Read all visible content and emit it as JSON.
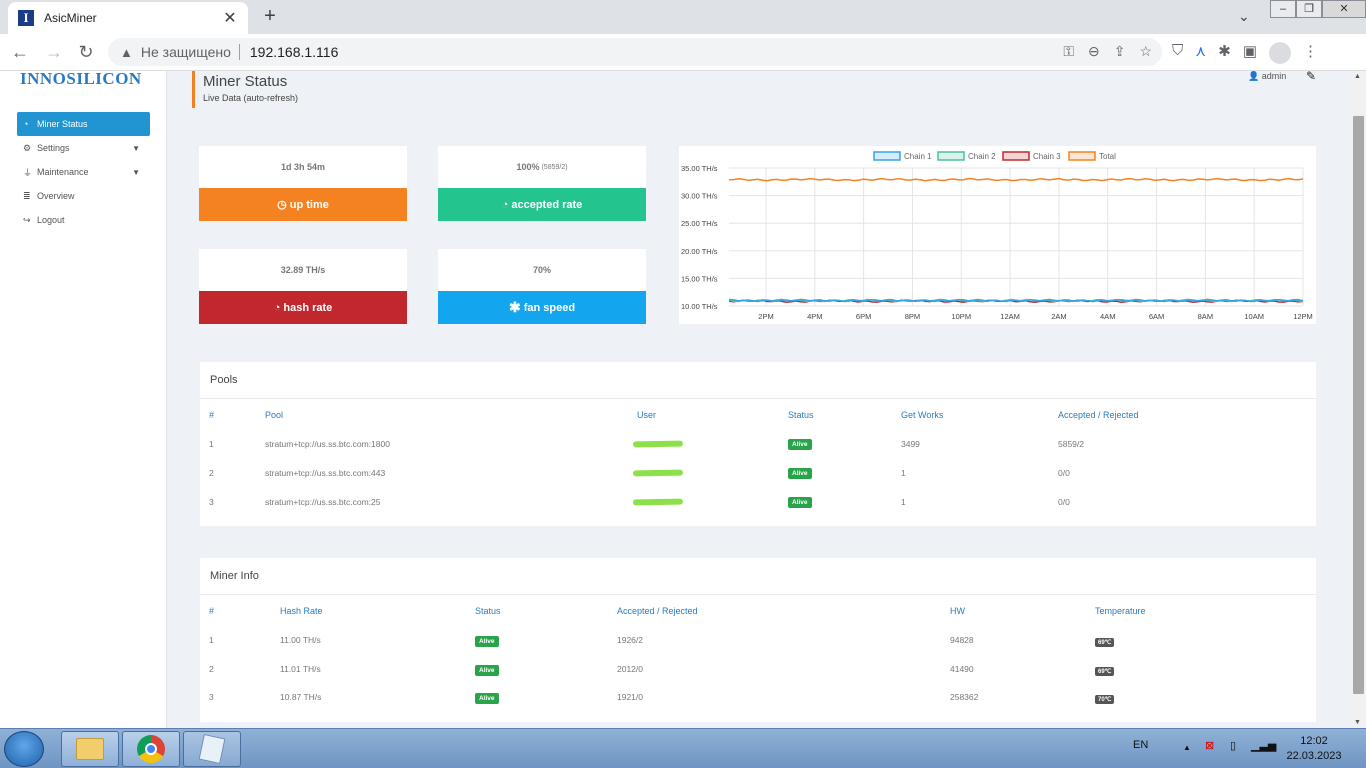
{
  "browser": {
    "tab_title": "AsicMiner",
    "tab_favicon_letter": "I",
    "tab_close": "✕",
    "new_tab": "+",
    "not_secure": "Не защищено",
    "url": "192.168.1.116"
  },
  "sidebar": {
    "logo": "INNOSILICON",
    "items": [
      {
        "label": "Miner Status",
        "icon": "dashboard-icon",
        "active": true
      },
      {
        "label": "Settings",
        "icon": "gears-icon",
        "has_caret": true
      },
      {
        "label": "Maintenance",
        "icon": "plug-icon",
        "has_caret": true
      },
      {
        "label": "Overview",
        "icon": "database-icon"
      },
      {
        "label": "Logout",
        "icon": "logout-icon"
      }
    ]
  },
  "header": {
    "title": "Miner Status",
    "subtitle": "Live Data (auto-refresh)",
    "user": "admin"
  },
  "stats": {
    "uptime": {
      "value": "1d 3h 54m",
      "label": "up time",
      "color": "#f58220"
    },
    "accepted": {
      "value": "100%",
      "value_detail": "(5859/2)",
      "label": "accepted rate",
      "color": "#23c48e"
    },
    "hashrate": {
      "value": "32.89 TH/s",
      "label": "hash rate",
      "color": "#c0282d"
    },
    "fan": {
      "value": "70%",
      "label": "fan speed",
      "color": "#13a5ee"
    }
  },
  "chart_data": {
    "type": "line",
    "legend": [
      "Chain 1",
      "Chain 2",
      "Chain 3",
      "Total"
    ],
    "series_colors": [
      "#36a2eb",
      "#4bc0a0",
      "#c0282d",
      "#f58220"
    ],
    "y_ticks": [
      "35.00 TH/s",
      "30.00 TH/s",
      "25.00 TH/s",
      "20.00 TH/s",
      "15.00 TH/s",
      "10.00 TH/s"
    ],
    "ylim": [
      10,
      35
    ],
    "x_ticks": [
      "2PM",
      "4PM",
      "6PM",
      "8PM",
      "10PM",
      "12AM",
      "2AM",
      "4AM",
      "6AM",
      "8AM",
      "10AM",
      "12PM"
    ],
    "series": [
      {
        "name": "Chain 1",
        "approx_value": 11.0
      },
      {
        "name": "Chain 2",
        "approx_value": 11.0
      },
      {
        "name": "Chain 3",
        "approx_value": 10.87
      },
      {
        "name": "Total",
        "approx_value": 32.89
      }
    ]
  },
  "pools": {
    "title": "Pools",
    "headers": [
      "#",
      "Pool",
      "User",
      "Status",
      "Get Works",
      "Accepted / Rejected"
    ],
    "rows": [
      {
        "num": "1",
        "pool": "stratum+tcp://us.ss.btc.com:1800",
        "status": "Alive",
        "get_works": "3499",
        "acc_rej": "5859/2"
      },
      {
        "num": "2",
        "pool": "stratum+tcp://us.ss.btc.com:443",
        "status": "Alive",
        "get_works": "1",
        "acc_rej": "0/0"
      },
      {
        "num": "3",
        "pool": "stratum+tcp://us.ss.btc.com:25",
        "status": "Alive",
        "get_works": "1",
        "acc_rej": "0/0"
      }
    ]
  },
  "miner_info": {
    "title": "Miner Info",
    "headers": [
      "#",
      "Hash Rate",
      "Status",
      "Accepted / Rejected",
      "HW",
      "Temperature"
    ],
    "rows": [
      {
        "num": "1",
        "hashrate": "11.00 TH/s",
        "status": "Alive",
        "acc_rej": "1926/2",
        "hw": "94828",
        "temp": "69℃"
      },
      {
        "num": "2",
        "hashrate": "11.01 TH/s",
        "status": "Alive",
        "acc_rej": "2012/0",
        "hw": "41490",
        "temp": "69℃"
      },
      {
        "num": "3",
        "hashrate": "10.87 TH/s",
        "status": "Alive",
        "acc_rej": "1921/0",
        "hw": "258362",
        "temp": "70℃"
      }
    ]
  },
  "taskbar": {
    "lang": "EN",
    "time": "12:02",
    "date": "22.03.2023"
  }
}
